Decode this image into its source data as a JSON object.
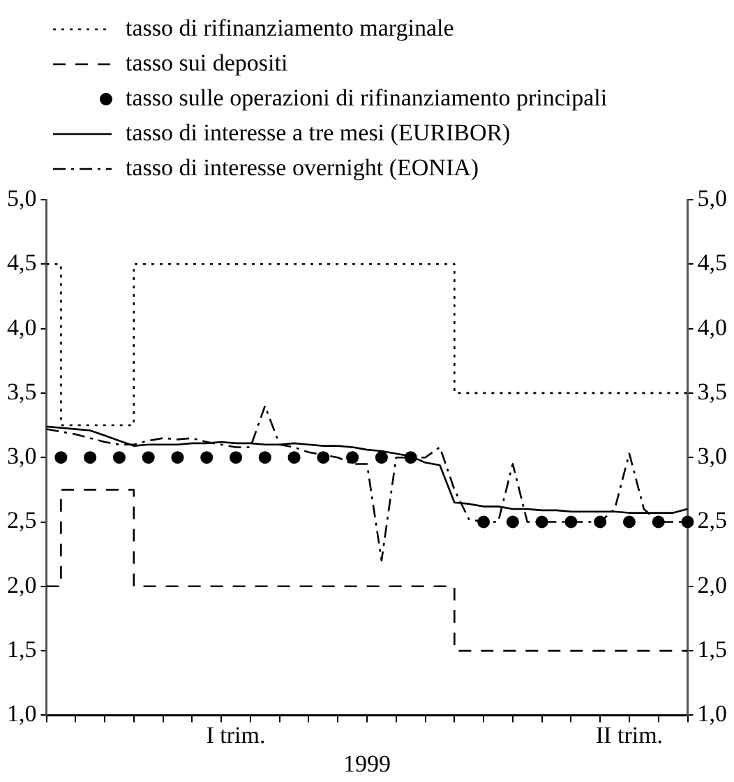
{
  "chart_data": {
    "type": "line",
    "xlabel": "1999",
    "categories": [
      null,
      null,
      null,
      null,
      null,
      null,
      null,
      null,
      null,
      null,
      null,
      null,
      null,
      "I trim.",
      null,
      null,
      null,
      null,
      null,
      null,
      null,
      null,
      null,
      null,
      null,
      null,
      null,
      null,
      null,
      null,
      null,
      null,
      null,
      null,
      null,
      null,
      null,
      null,
      null,
      null,
      "II trim.",
      null,
      null,
      null,
      null
    ],
    "series": [
      {
        "name": "tasso di rifinanziamento marginale",
        "type": "step",
        "line_style": "dotted",
        "color": "#000000",
        "values": [
          4.5,
          3.25,
          3.25,
          3.25,
          3.25,
          3.25,
          4.5,
          4.5,
          4.5,
          4.5,
          4.5,
          4.5,
          4.5,
          4.5,
          4.5,
          4.5,
          4.5,
          4.5,
          4.5,
          4.5,
          4.5,
          4.5,
          4.5,
          4.5,
          4.5,
          4.5,
          4.5,
          4.5,
          3.5,
          3.5,
          3.5,
          3.5,
          3.5,
          3.5,
          3.5,
          3.5,
          3.5,
          3.5,
          3.5,
          3.5,
          3.5,
          3.5,
          3.5,
          3.5,
          3.5
        ]
      },
      {
        "name": "tasso sui depositi",
        "type": "step",
        "line_style": "dashed",
        "color": "#000000",
        "values": [
          2.0,
          2.75,
          2.75,
          2.75,
          2.75,
          2.75,
          2.0,
          2.0,
          2.0,
          2.0,
          2.0,
          2.0,
          2.0,
          2.0,
          2.0,
          2.0,
          2.0,
          2.0,
          2.0,
          2.0,
          2.0,
          2.0,
          2.0,
          2.0,
          2.0,
          2.0,
          2.0,
          2.0,
          1.5,
          1.5,
          1.5,
          1.5,
          1.5,
          1.5,
          1.5,
          1.5,
          1.5,
          1.5,
          1.5,
          1.5,
          1.5,
          1.5,
          1.5,
          1.5,
          1.5
        ]
      },
      {
        "name": "tasso sulle operazioni di rifinanziamento principali",
        "type": "scatter",
        "marker": "circle",
        "color": "#000000",
        "values": [
          null,
          3.0,
          null,
          3.0,
          null,
          3.0,
          null,
          3.0,
          null,
          3.0,
          null,
          3.0,
          null,
          3.0,
          null,
          3.0,
          null,
          3.0,
          null,
          3.0,
          null,
          3.0,
          null,
          3.0,
          null,
          3.0,
          null,
          null,
          null,
          null,
          2.5,
          null,
          2.5,
          null,
          2.5,
          null,
          2.5,
          null,
          2.5,
          null,
          2.5,
          null,
          2.5,
          null,
          2.5
        ]
      },
      {
        "name": "tasso di interesse a tre mesi (EURIBOR)",
        "type": "line",
        "line_style": "solid",
        "color": "#000000",
        "values": [
          3.24,
          3.23,
          3.22,
          3.21,
          3.17,
          3.13,
          3.09,
          3.1,
          3.1,
          3.1,
          3.11,
          3.11,
          3.12,
          3.11,
          3.11,
          3.1,
          3.1,
          3.11,
          3.1,
          3.09,
          3.09,
          3.08,
          3.06,
          3.05,
          3.03,
          3.01,
          2.96,
          2.94,
          2.65,
          2.64,
          2.62,
          2.62,
          2.6,
          2.6,
          2.59,
          2.59,
          2.58,
          2.58,
          2.58,
          2.58,
          2.57,
          2.57,
          2.57,
          2.57,
          2.6
        ]
      },
      {
        "name": "tasso di interesse overnight (EONIA)",
        "type": "line",
        "line_style": "dashdot",
        "color": "#000000",
        "values": [
          3.22,
          3.2,
          3.18,
          3.15,
          3.12,
          3.1,
          3.1,
          3.13,
          3.15,
          3.14,
          3.15,
          3.12,
          3.1,
          3.08,
          3.08,
          3.4,
          3.1,
          3.08,
          3.04,
          3.02,
          3.0,
          2.95,
          2.95,
          2.2,
          3.0,
          3.0,
          3.0,
          3.08,
          2.75,
          2.52,
          2.5,
          2.5,
          2.95,
          2.5,
          2.5,
          2.5,
          2.5,
          2.5,
          2.5,
          2.6,
          3.03,
          2.6,
          2.5,
          2.5,
          2.5
        ]
      }
    ],
    "ylim": [
      1,
      5
    ],
    "yticks": [
      {
        "value": 1,
        "label": "1,0"
      },
      {
        "value": 1.5,
        "label": "1,5"
      },
      {
        "value": 2,
        "label": "2,0"
      },
      {
        "value": 2.5,
        "label": "2,5"
      },
      {
        "value": 3,
        "label": "3,0"
      },
      {
        "value": 3.5,
        "label": "3,5"
      },
      {
        "value": 4,
        "label": "4,0"
      },
      {
        "value": 4.5,
        "label": "4,5"
      },
      {
        "value": 5,
        "label": "5,0"
      }
    ],
    "y2lim": [
      1,
      5
    ],
    "y2ticks": [
      {
        "value": 1,
        "label": "1,0"
      },
      {
        "value": 1.5,
        "label": "1,5"
      },
      {
        "value": 2,
        "label": "2,0"
      },
      {
        "value": 2.5,
        "label": "2,5"
      },
      {
        "value": 3,
        "label": "3,0"
      },
      {
        "value": 3.5,
        "label": "3,5"
      },
      {
        "value": 4,
        "label": "4,0"
      },
      {
        "value": 4.5,
        "label": "4,5"
      },
      {
        "value": 5,
        "label": "5,0"
      }
    ],
    "legend": "top",
    "grid": false
  }
}
